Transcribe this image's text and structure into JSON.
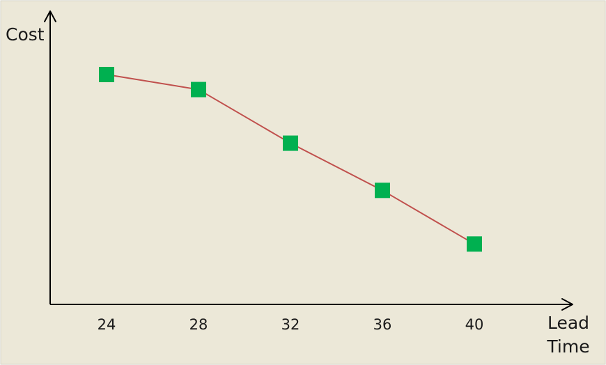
{
  "chart_data": {
    "type": "line",
    "title": "",
    "xlabel": "Lead Time",
    "ylabel": "Cost",
    "x": [
      24,
      28,
      32,
      36,
      40
    ],
    "tick_labels": [
      "24",
      "28",
      "32",
      "36",
      "40"
    ],
    "series": [
      {
        "values": [
          100,
          93,
          68,
          46,
          21
        ]
      }
    ],
    "ylim": [
      0,
      100
    ],
    "grid": false,
    "colors": {
      "background": "#ece8d8",
      "border": "#d2cfc2",
      "axis": "#000000",
      "line": "#c0504d",
      "marker": "#00b050"
    }
  }
}
